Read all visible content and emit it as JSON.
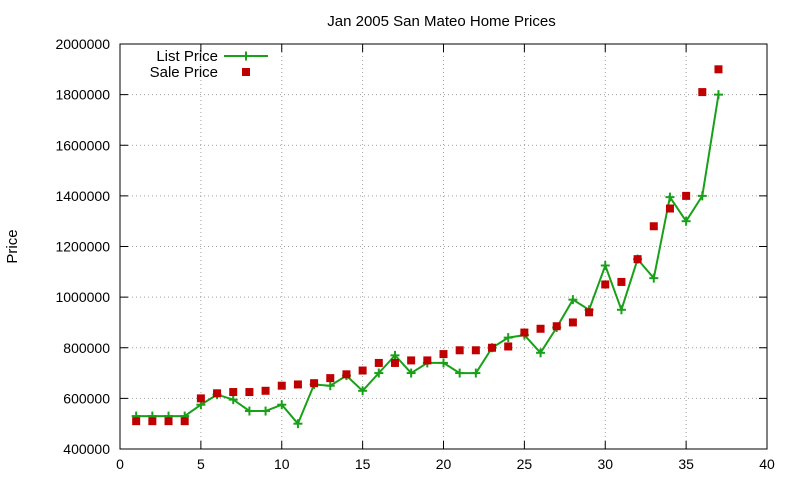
{
  "chart_data": {
    "type": "line",
    "title": "Jan 2005 San Mateo Home Prices",
    "xlabel": "",
    "ylabel": "Price",
    "xlim": [
      0,
      40
    ],
    "ylim": [
      400000,
      2000000
    ],
    "xticks": [
      0,
      5,
      10,
      15,
      20,
      25,
      30,
      35,
      40
    ],
    "yticks": [
      400000,
      600000,
      800000,
      1000000,
      1200000,
      1400000,
      1600000,
      1800000,
      2000000
    ],
    "grid": true,
    "legend_position": "top-left",
    "x": [
      1,
      2,
      3,
      4,
      5,
      6,
      7,
      8,
      9,
      10,
      11,
      12,
      13,
      14,
      15,
      16,
      17,
      18,
      19,
      20,
      21,
      22,
      23,
      24,
      25,
      26,
      27,
      28,
      29,
      30,
      31,
      32,
      33,
      34,
      35,
      36,
      37
    ],
    "series": [
      {
        "name": "List Price",
        "style": "lines+points",
        "color": "#19a019",
        "values": [
          530000,
          530000,
          530000,
          530000,
          575000,
          615000,
          595000,
          550000,
          550000,
          575000,
          500000,
          655000,
          650000,
          690000,
          630000,
          700000,
          770000,
          700000,
          740000,
          740000,
          700000,
          700000,
          800000,
          840000,
          850000,
          780000,
          880000,
          990000,
          950000,
          1125000,
          950000,
          1150000,
          1075000,
          1395000,
          1300000,
          1400000,
          1800000
        ]
      },
      {
        "name": "Sale Price",
        "style": "points",
        "color": "#c00000",
        "values": [
          510000,
          510000,
          510000,
          510000,
          600000,
          620000,
          625000,
          625000,
          630000,
          650000,
          655000,
          660000,
          680000,
          695000,
          710000,
          740000,
          740000,
          750000,
          750000,
          775000,
          790000,
          790000,
          800000,
          805000,
          860000,
          875000,
          885000,
          900000,
          940000,
          1050000,
          1060000,
          1150000,
          1280000,
          1350000,
          1400000,
          1810000,
          1900000
        ]
      }
    ]
  }
}
